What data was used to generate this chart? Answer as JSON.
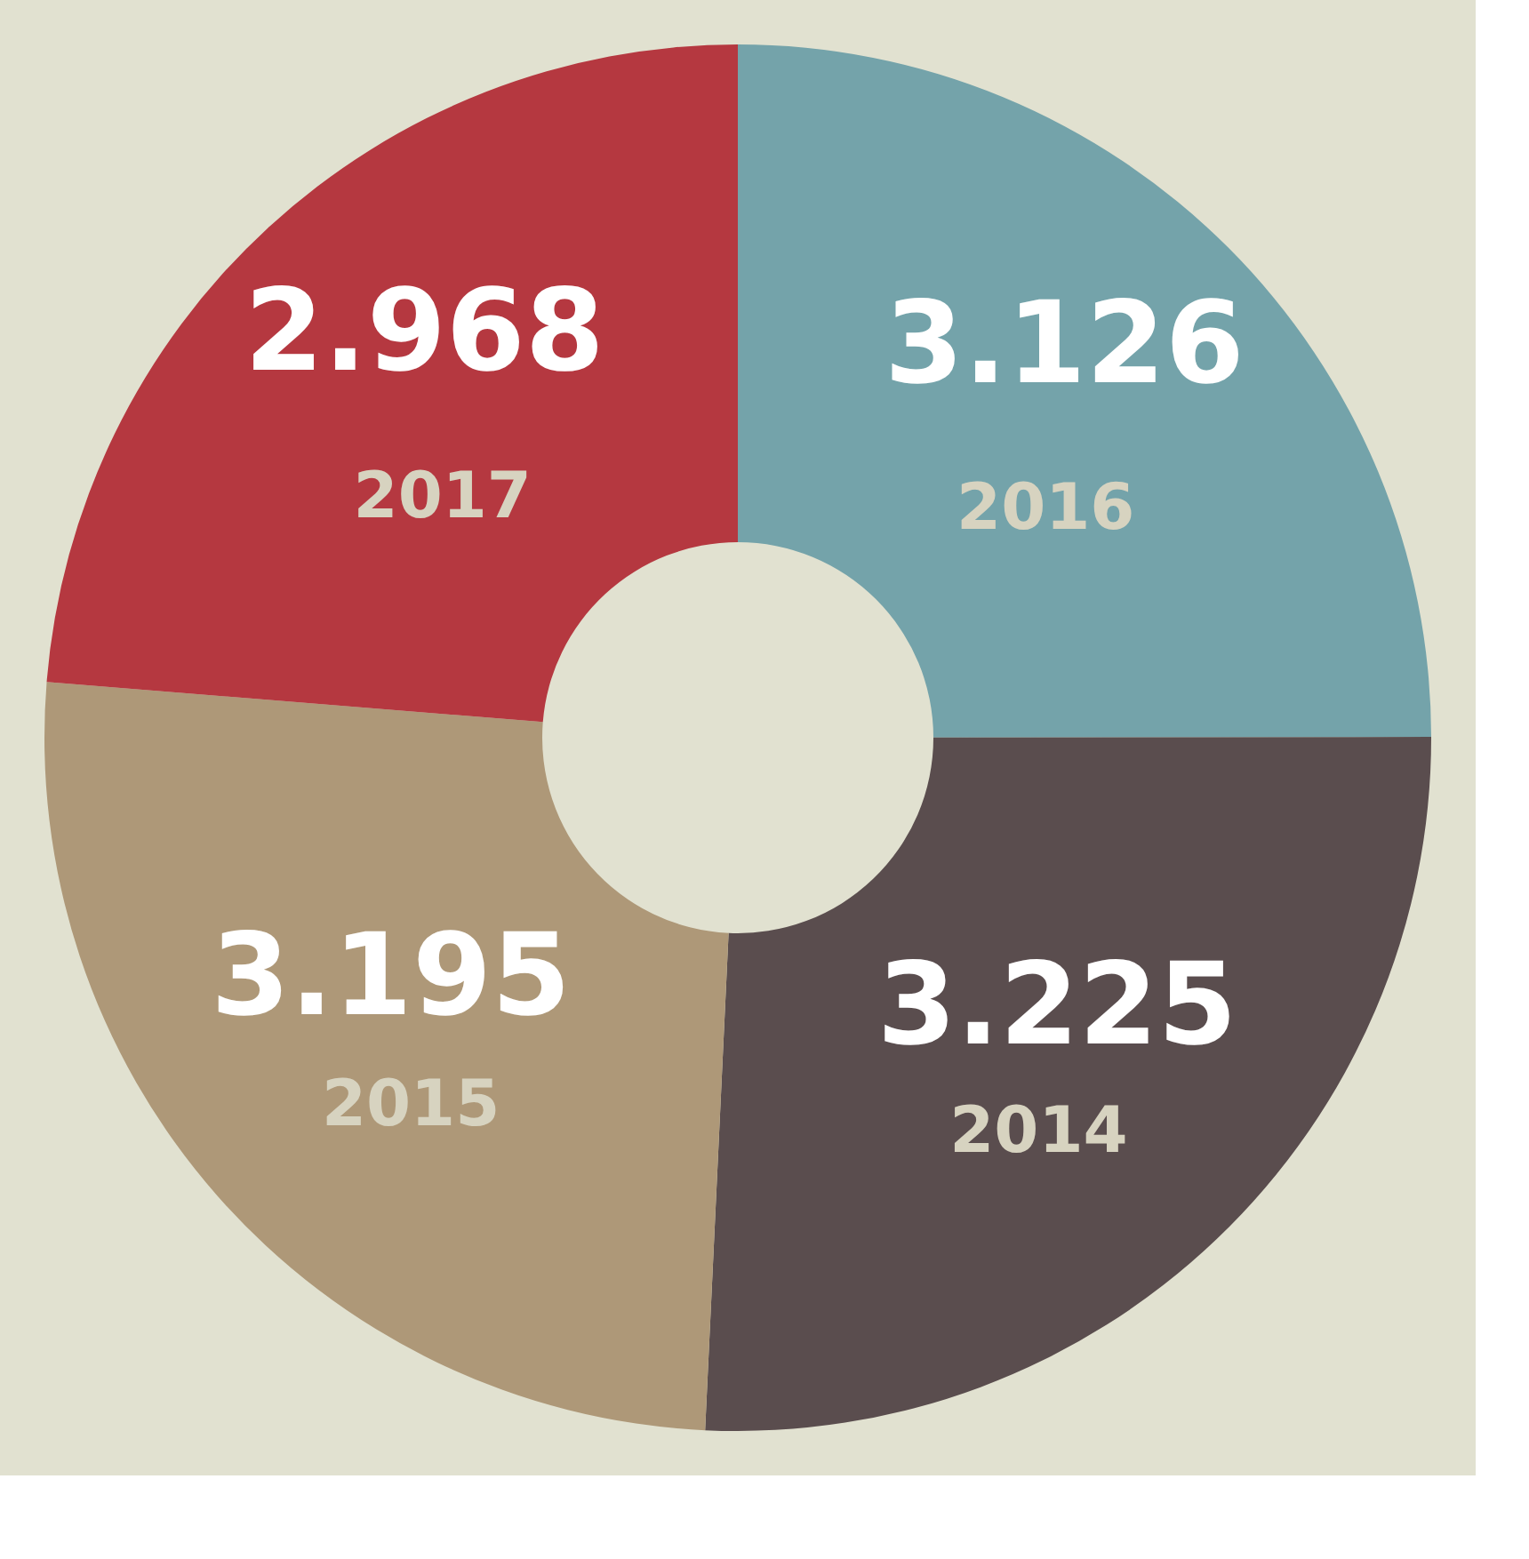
{
  "chart_data": {
    "type": "donut",
    "categories": [
      "2016",
      "2014",
      "2015",
      "2017"
    ],
    "values": [
      3.126,
      3.225,
      3.195,
      2.968
    ],
    "colors": [
      "#74a3aa",
      "#5a4d4e",
      "#ae9878",
      "#b53840"
    ],
    "data_labels": true,
    "legend": false
  }
}
